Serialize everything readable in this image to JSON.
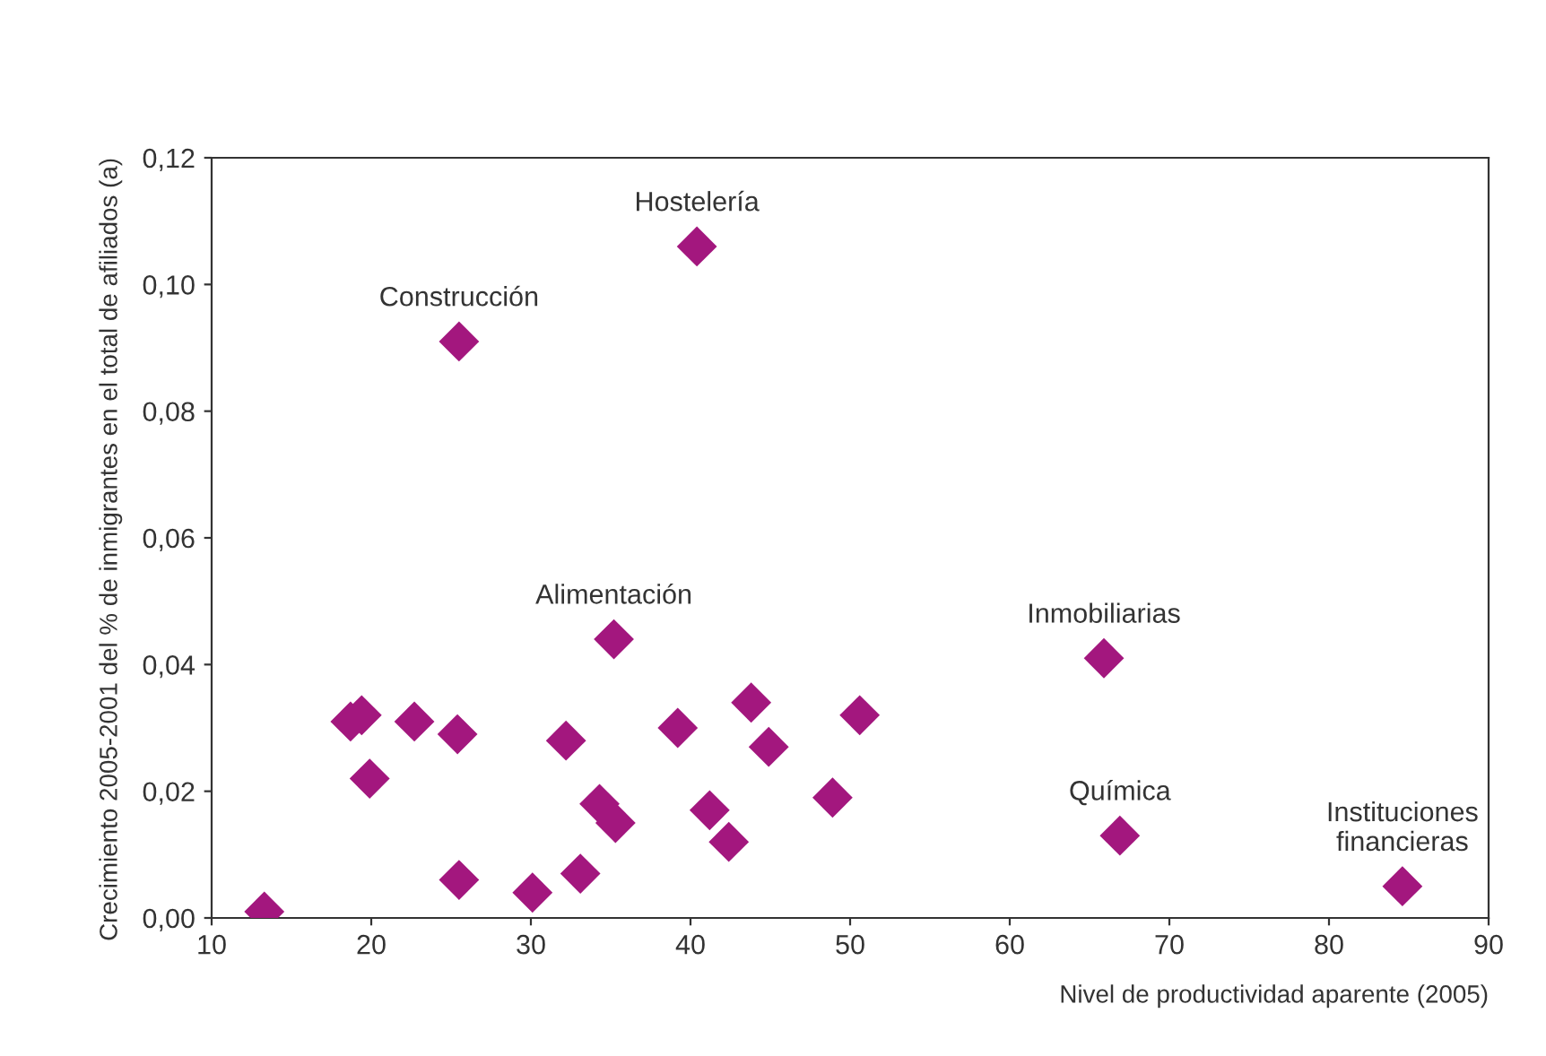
{
  "chart_data": {
    "type": "scatter",
    "xlabel": "Nivel de productividad aparente (2005)",
    "ylabel": "Crecimiento 2005-2001 del % de inmigrantes en el total de afiliados (a)",
    "x": [
      13.3,
      18.7,
      19.4,
      19.9,
      22.7,
      25.4,
      25.5,
      25.5,
      30.1,
      32.2,
      33.1,
      34.3,
      35.3,
      35.2,
      39.2,
      40.4,
      41.2,
      42.4,
      43.8,
      44.9,
      48.9,
      50.6,
      65.9,
      66.9,
      84.6
    ],
    "series": [
      {
        "color": "#a3177e",
        "values": [
          0.001,
          0.031,
          0.032,
          0.022,
          0.031,
          0.029,
          0.006,
          0.091,
          0.004,
          0.028,
          0.007,
          0.018,
          0.015,
          0.044,
          0.03,
          0.106,
          0.017,
          0.012,
          0.034,
          0.027,
          0.019,
          0.032,
          0.041,
          0.013,
          0.005
        ]
      }
    ],
    "marker": "diamond",
    "xlim": [
      10,
      90
    ],
    "xticks": [
      10,
      20,
      30,
      40,
      50,
      60,
      70,
      80,
      90
    ],
    "ylim": [
      0,
      0.12
    ],
    "yticks": [
      {
        "value": 0,
        "label": "0,00"
      },
      {
        "value": 0.02,
        "label": "0,02"
      },
      {
        "value": 0.04,
        "label": "0,04"
      },
      {
        "value": 0.06,
        "label": "0,06"
      },
      {
        "value": 0.08,
        "label": "0,08"
      },
      {
        "value": 0.1,
        "label": "0,10"
      },
      {
        "value": 0.12,
        "label": "0,12"
      }
    ],
    "grid": false,
    "legend": false,
    "annotations": [
      {
        "text": "Hostelería",
        "x": 40.4,
        "y": 0.106
      },
      {
        "text": "Construcción",
        "x": 25.5,
        "y": 0.091
      },
      {
        "text": "Alimentación",
        "x": 35.2,
        "y": 0.044
      },
      {
        "text": "Inmobiliarias",
        "x": 65.9,
        "y": 0.041
      },
      {
        "text": "Química",
        "x": 66.9,
        "y": 0.013
      },
      {
        "text": "Instituciones\nfinancieras",
        "x": 84.6,
        "y": 0.005
      }
    ]
  }
}
